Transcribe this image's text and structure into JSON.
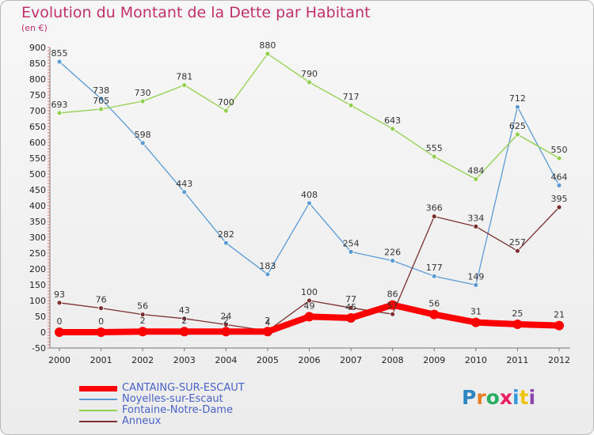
{
  "header": {
    "title": "Evolution du Montant de la Dette par Habitant",
    "unit": "(en €)"
  },
  "logo": {
    "text": "Proxiti",
    "letter_colors": [
      "#2e86c1",
      "#e67e22",
      "#27ae60",
      "#e91e63",
      "#3498db",
      "#f1c40f",
      "#8e44ad"
    ]
  },
  "chart_data": {
    "type": "line",
    "title": "Evolution du Montant de la Dette par Habitant",
    "subtitle": "(en €)",
    "xlabel": "",
    "ylabel": "",
    "x": [
      "2000",
      "2001",
      "2002",
      "2003",
      "2004",
      "2005",
      "2006",
      "2007",
      "2008",
      "2009",
      "2010",
      "2011",
      "2012"
    ],
    "ylim": [
      -50,
      900
    ],
    "yticks": [
      -50,
      0,
      50,
      100,
      150,
      200,
      250,
      300,
      350,
      400,
      450,
      500,
      550,
      600,
      650,
      700,
      750,
      800,
      850,
      900
    ],
    "grid": false,
    "legend_position": "bottom-left",
    "series": [
      {
        "name": "Noyelles-sur-Escaut",
        "color": "#5b9bd5",
        "values": [
          855,
          738,
          598,
          443,
          282,
          183,
          408,
          254,
          226,
          177,
          149,
          712,
          464
        ]
      },
      {
        "name": "Fontaine-Notre-Dame",
        "color": "#92d050",
        "values": [
          693,
          705,
          730,
          781,
          700,
          880,
          790,
          717,
          643,
          555,
          484,
          625,
          550
        ]
      },
      {
        "name": "Anneux",
        "color": "#7b2f2f",
        "values": [
          93,
          76,
          56,
          43,
          24,
          4,
          100,
          77,
          57,
          366,
          334,
          257,
          395
        ]
      },
      {
        "name": "CANTAING-SUR-ESCAUT",
        "color": "#ff0000",
        "values": [
          0,
          0,
          2,
          2,
          2,
          2,
          49,
          45,
          86,
          56,
          31,
          25,
          21
        ]
      }
    ]
  }
}
